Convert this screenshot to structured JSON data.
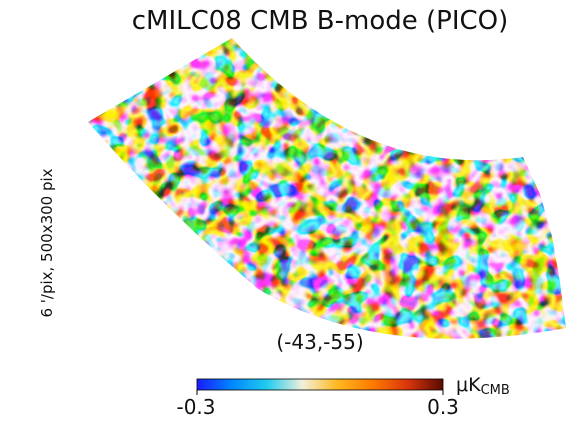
{
  "map": {
    "title": "cMILC08 CMB B-mode (PICO)",
    "resolution_text": "6 '/pix,   500x300 pix",
    "center_coordinates": "(-43,-55)",
    "colorscale": {
      "min_label": "-0.3",
      "max_label": "0.3",
      "min": -0.3,
      "max": 0.3,
      "unit_prefix": "μK",
      "unit_subscript": "CMB",
      "colors": [
        "#1a1aff",
        "#0088ff",
        "#22ccee",
        "#f2f0dc",
        "#ffb81f",
        "#ff7a00",
        "#d9350b",
        "#5a0a00"
      ]
    },
    "projection_shape": "curved-band"
  }
}
